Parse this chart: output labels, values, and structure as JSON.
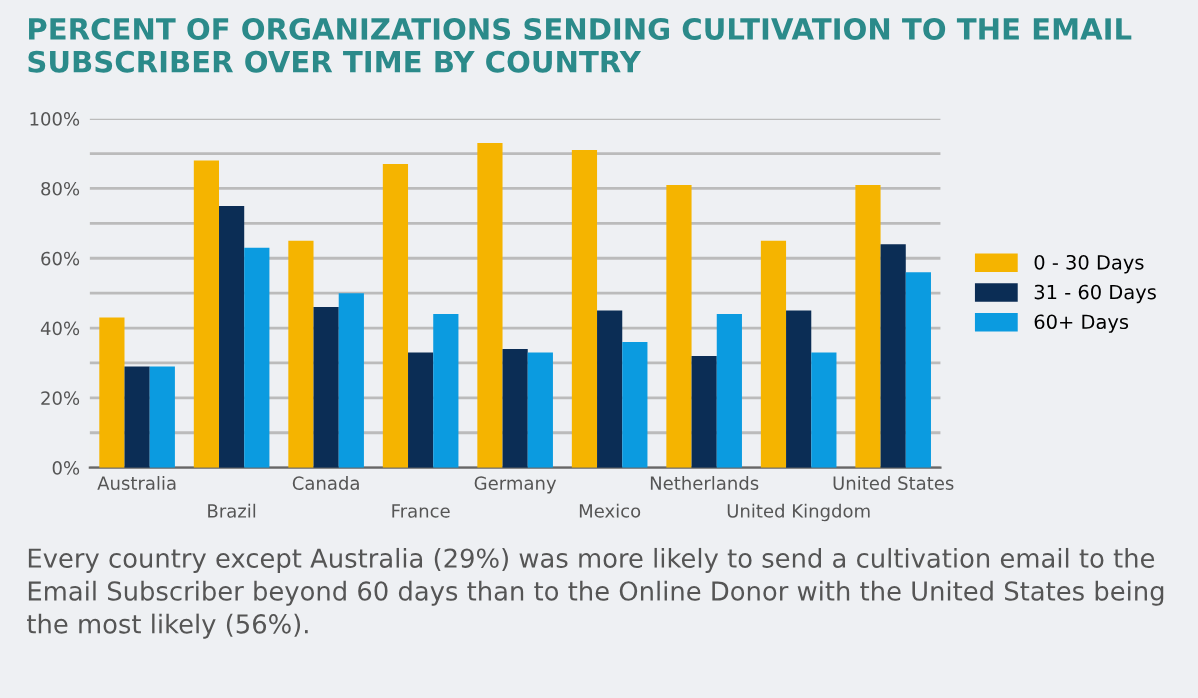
{
  "chart_data": {
    "type": "bar",
    "title": "PERCENT OF ORGANIZATIONS SENDING CULTIVATION TO THE EMAIL SUBSCRIBER OVER TIME BY COUNTRY",
    "categories": [
      "Australia",
      "Brazil",
      "Canada",
      "France",
      "Germany",
      "Mexico",
      "Netherlands",
      "United Kingdom",
      "United States"
    ],
    "series": [
      {
        "name": "0 - 30 Days",
        "color": "#f5b400",
        "values": [
          43,
          88,
          65,
          87,
          93,
          91,
          81,
          65,
          81
        ]
      },
      {
        "name": "31 - 60 Days",
        "color": "#0b2d55",
        "values": [
          29,
          75,
          46,
          33,
          34,
          45,
          32,
          45,
          64
        ]
      },
      {
        "name": "60+ Days",
        "color": "#0b9be0",
        "values": [
          29,
          63,
          50,
          44,
          33,
          36,
          44,
          33,
          56
        ]
      }
    ],
    "ylim": [
      0,
      100
    ],
    "yticks": [
      {
        "value": 0,
        "label": "0%"
      },
      {
        "value": 10,
        "label": null
      },
      {
        "value": 20,
        "label": "20%"
      },
      {
        "value": 30,
        "label": null
      },
      {
        "value": 40,
        "label": "40%"
      },
      {
        "value": 50,
        "label": null
      },
      {
        "value": 60,
        "label": "60%"
      },
      {
        "value": 70,
        "label": null
      },
      {
        "value": 80,
        "label": "80%"
      },
      {
        "value": 90,
        "label": null
      },
      {
        "value": 100,
        "label": "100%"
      }
    ],
    "grid": "y",
    "legend": "right",
    "annotations": [
      "Every country except Australia (29%) was more likely to send a cultivation email to the Email Subscriber beyond 60 days than to the Online Donor with the United States being the most likely (56%)."
    ]
  }
}
